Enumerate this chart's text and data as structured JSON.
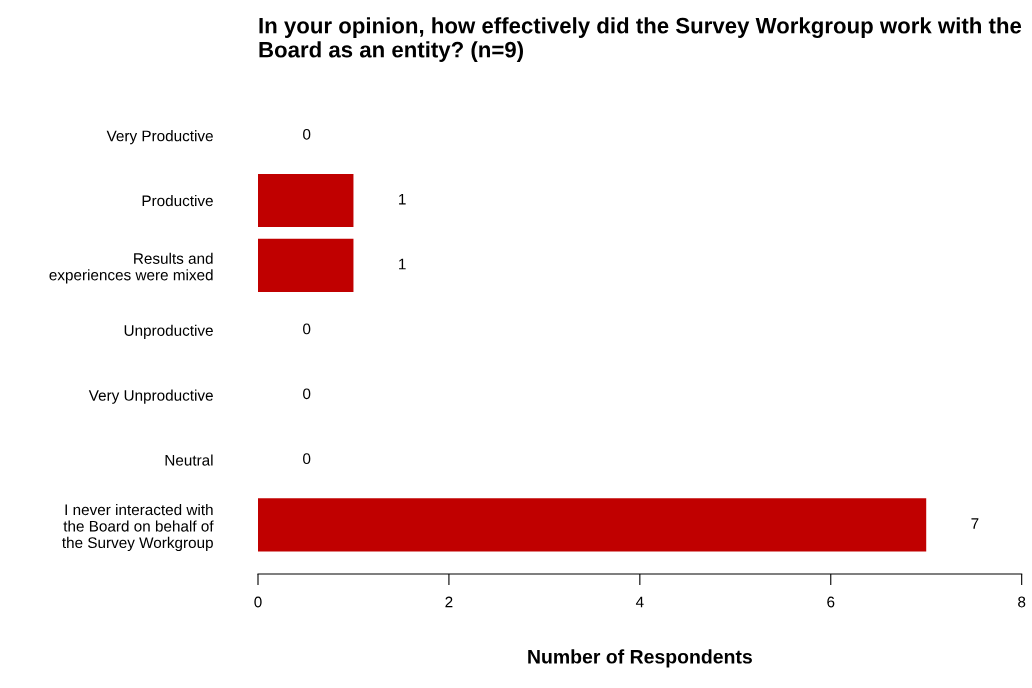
{
  "chart_data": {
    "type": "bar",
    "orientation": "horizontal",
    "title": "In your opinion, how effectively did the Survey Workgroup work with the Board as an entity? (n=9)",
    "xlabel": "Number of Respondents",
    "categories": [
      "Very Productive",
      "Productive",
      "Results and\nexperiences were mixed",
      "Unproductive",
      "Very Unproductive",
      "Neutral",
      "I never interacted with\nthe Board on behalf of\nthe Survey Workgroup"
    ],
    "values": [
      0,
      1,
      1,
      0,
      0,
      0,
      7
    ],
    "color": "#c00000",
    "xlim": [
      0,
      8
    ],
    "xticks": [
      0,
      2,
      4,
      6,
      8
    ],
    "data_labels": true,
    "grid": false,
    "legend": false
  }
}
